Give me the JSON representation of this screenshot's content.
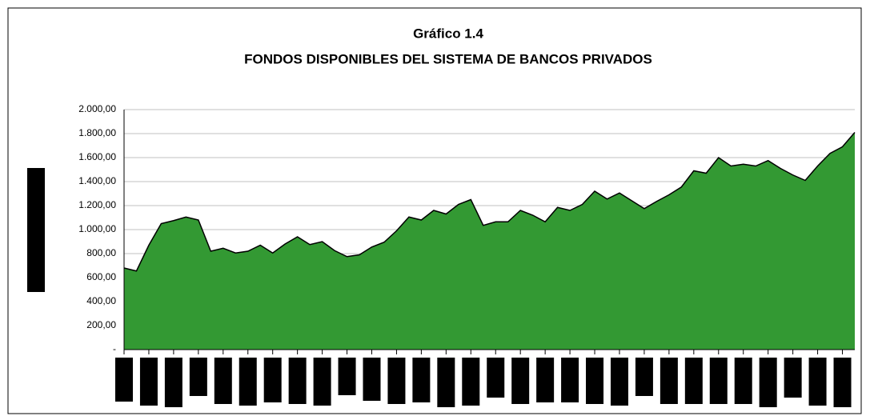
{
  "chart_data": {
    "type": "area",
    "title": "Gráfico 1.4",
    "subtitle": "FONDOS DISPONIBLES DEL SISTEMA DE BANCOS PRIVADOS",
    "categories": [
      null,
      null,
      null,
      null,
      null,
      null,
      null,
      null,
      null,
      null,
      null,
      null,
      null,
      null,
      null,
      null,
      null,
      null,
      null,
      null,
      null,
      null,
      null,
      null,
      null,
      null,
      null,
      null,
      null,
      null,
      null,
      null,
      null,
      null,
      null,
      null,
      null,
      null,
      null,
      null,
      null,
      null,
      null,
      null,
      null,
      null,
      null,
      null,
      null,
      null,
      null,
      null,
      null,
      null,
      null,
      null,
      null,
      null,
      null,
      null
    ],
    "values": [
      680,
      655,
      870,
      1050,
      1075,
      1105,
      1080,
      820,
      845,
      805,
      820,
      870,
      805,
      880,
      940,
      875,
      900,
      825,
      775,
      790,
      855,
      895,
      990,
      1105,
      1080,
      1160,
      1130,
      1210,
      1250,
      1035,
      1065,
      1065,
      1160,
      1120,
      1065,
      1185,
      1160,
      1210,
      1320,
      1255,
      1305,
      1240,
      1175,
      1235,
      1290,
      1355,
      1490,
      1470,
      1600,
      1530,
      1545,
      1530,
      1575,
      1510,
      1455,
      1410,
      1530,
      1635,
      1690,
      1810
    ],
    "color": "#339933",
    "ylim": [
      0,
      2000
    ],
    "yticks": [
      {
        "value": 0,
        "label": "-"
      },
      {
        "value": 200,
        "label": "200,00"
      },
      {
        "value": 400,
        "label": "400,00"
      },
      {
        "value": 600,
        "label": "600,00"
      },
      {
        "value": 800,
        "label": "800,00"
      },
      {
        "value": 1000,
        "label": "1.000,00"
      },
      {
        "value": 1200,
        "label": "1.200,00"
      },
      {
        "value": 1400,
        "label": "1.400,00"
      },
      {
        "value": 1600,
        "label": "1.600,00"
      },
      {
        "value": 1800,
        "label": "1.800,00"
      },
      {
        "value": 2000,
        "label": "2.000,00"
      }
    ],
    "grid": true
  }
}
